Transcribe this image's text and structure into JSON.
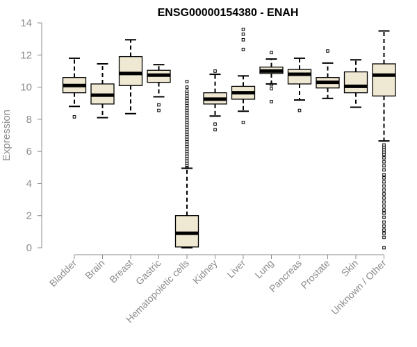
{
  "chart_data": {
    "type": "boxplot",
    "title": "ENSG00000154380 - ENAH",
    "ylabel": "Expression",
    "ylim": [
      0,
      14
    ],
    "yticks": [
      0,
      2,
      4,
      6,
      8,
      10,
      12,
      14
    ],
    "colors": {
      "box_fill": "#efe8d2",
      "box_stroke": "#000000",
      "axis": "#8c8c8c"
    },
    "categories": [
      "Bladder",
      "Brain",
      "Breast",
      "Gastric",
      "Hematopoietic cells",
      "Kidney",
      "Liver",
      "Lung",
      "Pancreas",
      "Prostate",
      "Skin",
      "Unknown / Other"
    ],
    "boxes": [
      {
        "name": "Bladder",
        "whisker_low": 8.8,
        "q1": 9.65,
        "median": 10.1,
        "q3": 10.6,
        "whisker_high": 11.8,
        "outliers": [
          8.15
        ]
      },
      {
        "name": "Brain",
        "whisker_low": 8.1,
        "q1": 8.95,
        "median": 9.5,
        "q3": 10.2,
        "whisker_high": 11.45,
        "outliers": []
      },
      {
        "name": "Breast",
        "whisker_low": 8.35,
        "q1": 10.1,
        "median": 10.85,
        "q3": 11.9,
        "whisker_high": 12.95,
        "outliers": []
      },
      {
        "name": "Gastric",
        "whisker_low": 9.4,
        "q1": 10.3,
        "median": 10.75,
        "q3": 11.05,
        "whisker_high": 11.4,
        "outliers": [
          8.9,
          8.55
        ]
      },
      {
        "name": "Hematopoietic cells",
        "whisker_low": 0.0,
        "q1": 0.05,
        "median": 0.9,
        "q3": 2.0,
        "whisker_high": 4.95,
        "outliers": [
          5.0,
          5.1,
          5.25,
          5.4,
          5.55,
          5.7,
          5.85,
          6.0,
          6.15,
          6.3,
          6.45,
          6.6,
          6.75,
          6.9,
          7.05,
          7.2,
          7.35,
          7.5,
          7.65,
          7.8,
          7.95,
          8.1,
          8.25,
          8.4,
          8.55,
          8.7,
          8.85,
          9.0,
          9.15,
          9.3,
          9.45,
          9.6,
          9.75,
          10.0,
          10.35
        ]
      },
      {
        "name": "Kidney",
        "whisker_low": 8.2,
        "q1": 8.95,
        "median": 9.25,
        "q3": 9.65,
        "whisker_high": 10.8,
        "outliers": [
          11.0,
          7.7,
          7.35
        ]
      },
      {
        "name": "Liver",
        "whisker_low": 8.5,
        "q1": 9.25,
        "median": 9.65,
        "q3": 10.05,
        "whisker_high": 10.7,
        "outliers": [
          13.6,
          13.3,
          12.95,
          12.35,
          7.8
        ]
      },
      {
        "name": "Lung",
        "whisker_low": 10.2,
        "q1": 10.85,
        "median": 11.0,
        "q3": 11.25,
        "whisker_high": 11.75,
        "outliers": [
          12.15,
          10.15,
          9.9,
          9.1
        ]
      },
      {
        "name": "Pancreas",
        "whisker_low": 9.2,
        "q1": 10.2,
        "median": 10.8,
        "q3": 11.1,
        "whisker_high": 11.8,
        "outliers": [
          8.55
        ]
      },
      {
        "name": "Prostate",
        "whisker_low": 9.3,
        "q1": 9.95,
        "median": 10.3,
        "q3": 10.6,
        "whisker_high": 11.5,
        "outliers": [
          12.25
        ]
      },
      {
        "name": "Skin",
        "whisker_low": 8.75,
        "q1": 9.65,
        "median": 10.05,
        "q3": 10.95,
        "whisker_high": 11.7,
        "outliers": []
      },
      {
        "name": "Unknown / Other",
        "whisker_low": 6.65,
        "q1": 9.45,
        "median": 10.75,
        "q3": 11.45,
        "whisker_high": 13.5,
        "outliers": [
          6.4,
          6.25,
          6.1,
          5.95,
          5.8,
          5.6,
          5.35,
          5.1,
          4.85,
          4.55,
          4.35,
          4.1,
          3.85,
          3.6,
          3.35,
          3.1,
          2.85,
          2.6,
          2.35,
          2.15,
          1.9,
          1.6,
          1.35,
          1.1,
          0.9,
          0.65,
          0.0
        ]
      }
    ]
  }
}
